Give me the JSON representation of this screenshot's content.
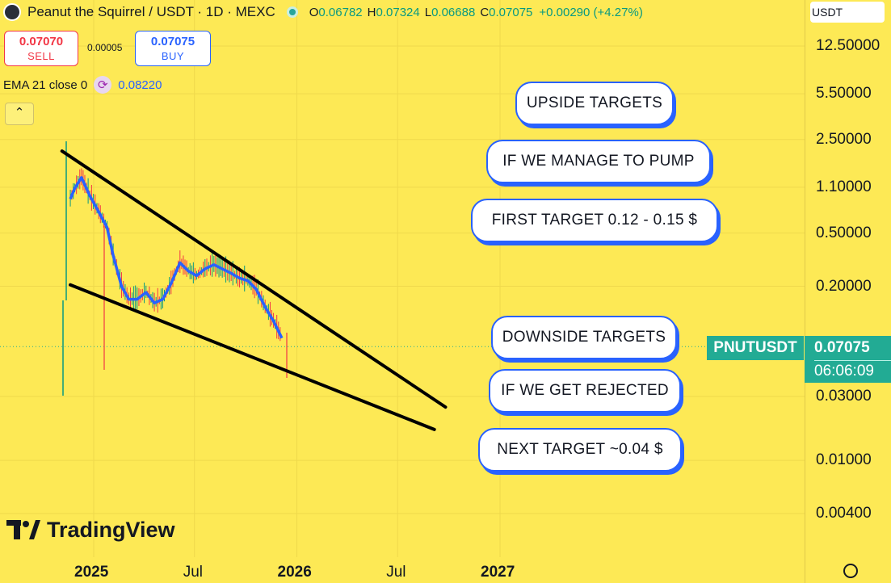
{
  "header": {
    "title": "Peanut the Squirrel / USDT · 1D · MEXC",
    "ohlc": [
      {
        "k": "O",
        "v": "0.06782"
      },
      {
        "k": "H",
        "v": "0.07324"
      },
      {
        "k": "L",
        "v": "0.06688"
      },
      {
        "k": "C",
        "v": "0.07075"
      }
    ],
    "change": "+0.00290 (+4.27%)"
  },
  "trade": {
    "sell_price": "0.07070",
    "sell_label": "SELL",
    "spread": "0.00005",
    "buy_price": "0.07075",
    "buy_label": "BUY"
  },
  "indicator": {
    "name": "EMA 21 close 0",
    "value": "0.08220"
  },
  "collapse_symbol": "⌃",
  "axis": {
    "currency": "USDT",
    "price_ticks": [
      "12.50000",
      "5.50000",
      "2.50000",
      "1.10000",
      "0.50000",
      "0.20000",
      "0.03000",
      "0.01000",
      "0.00400"
    ],
    "time_ticks": [
      "2025",
      "Jul",
      "2026",
      "Jul",
      "2027"
    ]
  },
  "last_price": {
    "symbol": "PNUTUSDT",
    "price": "0.07075",
    "countdown": "06:06:09"
  },
  "annotations": {
    "up_title": "UPSIDE TARGETS",
    "up_condition": "IF WE MANAGE TO PUMP",
    "up_target": "FIRST TARGET 0.12 - 0.15 $",
    "down_title": "DOWNSIDE TARGETS",
    "down_condition": "IF WE GET REJECTED",
    "down_target": "NEXT TARGET ~0.04 $"
  },
  "brand": "TradingView",
  "colors": {
    "background": "#fde955",
    "accent": "#22ab94",
    "ema": "#2962ff",
    "up": "#089981",
    "down": "#f23645"
  },
  "chart_data": {
    "type": "line",
    "title": "Peanut the Squirrel / USDT · 1D · MEXC",
    "y_scale": "log",
    "ylim": [
      0.003,
      20
    ],
    "x_range": [
      "2024-10-15",
      "2027-05-01"
    ],
    "series": [
      {
        "name": "EMA 21 close 0",
        "x": [
          "2024-11-20",
          "2024-11-28",
          "2024-12-10",
          "2024-12-25",
          "2025-01-10",
          "2025-01-25",
          "2025-02-05",
          "2025-02-20",
          "2025-03-05",
          "2025-03-20",
          "2025-04-05",
          "2025-04-20",
          "2025-05-05",
          "2025-05-20",
          "2025-06-05",
          "2025-06-20",
          "2025-07-05",
          "2025-07-20",
          "2025-08-05",
          "2025-08-20",
          "2025-09-05",
          "2025-09-20",
          "2025-10-05",
          "2025-10-20",
          "2025-11-05",
          "2025-11-20",
          "2025-12-05"
        ],
        "values": [
          0.9,
          1.08,
          1.3,
          0.95,
          0.72,
          0.55,
          0.34,
          0.2,
          0.16,
          0.16,
          0.18,
          0.15,
          0.16,
          0.21,
          0.3,
          0.26,
          0.24,
          0.27,
          0.29,
          0.27,
          0.25,
          0.23,
          0.22,
          0.19,
          0.14,
          0.11,
          0.082
        ]
      }
    ],
    "trendlines": [
      {
        "name": "upper",
        "x": [
          "2024-11-05",
          "2026-09-25"
        ],
        "values": [
          2.05,
          0.025
        ]
      },
      {
        "name": "lower",
        "x": [
          "2024-11-20",
          "2026-09-05"
        ],
        "values": [
          0.205,
          0.017
        ]
      }
    ],
    "last_price": 0.07075
  }
}
